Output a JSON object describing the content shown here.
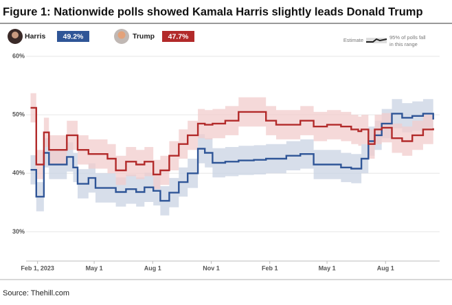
{
  "chart_data": {
    "type": "step-line",
    "title": "Figure 1: Nationwide polls showed Kamala Harris slightly leads Donald Trump",
    "source": "Source: Thehill.com",
    "estimate_label": "Estimate",
    "band_label": [
      "95% of polls fall",
      "in this range"
    ],
    "x": [
      "2023-01-21",
      "2023-01-30",
      "2023-02-11",
      "2023-02-19",
      "2023-03-19",
      "2023-03-29",
      "2023-04-05",
      "2023-04-22",
      "2023-05-03",
      "2023-05-22",
      "2023-06-04",
      "2023-06-20",
      "2023-07-06",
      "2023-07-19",
      "2023-08-02",
      "2023-08-13",
      "2023-08-27",
      "2023-09-11",
      "2023-09-25",
      "2023-10-11",
      "2023-10-22",
      "2023-11-03",
      "2023-11-23",
      "2023-12-14",
      "2024-01-07",
      "2024-01-26",
      "2024-02-11",
      "2024-02-27",
      "2024-03-20",
      "2024-04-10",
      "2024-05-01",
      "2024-05-23",
      "2024-06-08",
      "2024-06-19",
      "2024-06-24",
      "2024-07-05",
      "2024-07-15",
      "2024-07-26",
      "2024-08-11",
      "2024-08-27",
      "2024-09-12",
      "2024-09-29",
      "2024-10-15"
    ],
    "xlim": [
      "2023-01-14",
      "2024-10-25"
    ],
    "xticks": [
      {
        "value": "2023-02-01",
        "label": "Feb 1, 2023"
      },
      {
        "value": "2023-05-01",
        "label": "May 1"
      },
      {
        "value": "2023-08-01",
        "label": "Aug 1"
      },
      {
        "value": "2023-11-01",
        "label": "Nov 1"
      },
      {
        "value": "2024-02-01",
        "label": "Feb 1"
      },
      {
        "value": "2024-05-01",
        "label": "May 1"
      },
      {
        "value": "2024-08-01",
        "label": "Aug 1"
      }
    ],
    "ylim": [
      25,
      60
    ],
    "yticks": [
      {
        "value": 30,
        "label": "30%"
      },
      {
        "value": 40,
        "label": "40%"
      },
      {
        "value": 50,
        "label": "50%"
      },
      {
        "value": 60,
        "label": "60%"
      }
    ],
    "grid": true,
    "series": [
      {
        "name": "Harris",
        "color": "#2f5597",
        "band_color": "#c9d3e3",
        "value_label": "49.2%",
        "values": [
          40.6,
          36.0,
          43.5,
          41.5,
          42.8,
          41.0,
          38.2,
          39.2,
          37.5,
          37.5,
          36.8,
          37.3,
          36.8,
          37.6,
          37.0,
          35.3,
          36.7,
          38.5,
          40.0,
          44.2,
          43.5,
          41.8,
          42.0,
          42.2,
          42.3,
          42.5,
          42.5,
          43.0,
          43.3,
          41.5,
          41.5,
          41.0,
          40.8,
          40.8,
          42.5,
          45.5,
          46.5,
          48.5,
          50.2,
          49.5,
          49.8,
          50.2,
          49.2
        ],
        "lower": [
          38.1,
          33.5,
          41.0,
          39.0,
          40.3,
          38.5,
          35.7,
          36.7,
          35.0,
          35.0,
          34.3,
          34.8,
          34.3,
          35.1,
          34.5,
          32.8,
          34.2,
          36.0,
          37.5,
          41.7,
          41.0,
          39.3,
          39.5,
          39.7,
          39.8,
          40.0,
          40.0,
          40.5,
          40.8,
          39.0,
          39.0,
          38.5,
          38.3,
          38.3,
          40.0,
          43.0,
          44.0,
          46.0,
          47.7,
          47.0,
          47.3,
          47.7,
          46.7
        ],
        "upper": [
          43.1,
          38.5,
          46.0,
          44.0,
          45.3,
          43.5,
          40.7,
          41.7,
          40.0,
          40.0,
          39.3,
          39.8,
          39.3,
          40.1,
          39.5,
          37.8,
          39.2,
          41.0,
          42.5,
          46.7,
          46.0,
          44.3,
          44.5,
          44.7,
          44.8,
          45.0,
          45.0,
          45.5,
          45.8,
          44.0,
          44.0,
          43.5,
          43.3,
          43.3,
          45.0,
          48.0,
          49.0,
          51.0,
          52.7,
          52.0,
          52.3,
          52.7,
          51.7
        ]
      },
      {
        "name": "Trump",
        "color": "#b22a2a",
        "band_color": "#f2cccc",
        "value_label": "47.7%",
        "values": [
          51.2,
          41.5,
          47.0,
          44.0,
          46.5,
          46.5,
          44.0,
          43.3,
          43.3,
          42.5,
          40.5,
          42.0,
          41.5,
          42.0,
          39.8,
          40.5,
          43.0,
          45.0,
          46.5,
          48.5,
          48.3,
          48.5,
          49.0,
          50.5,
          50.5,
          49.0,
          48.3,
          48.3,
          49.0,
          48.0,
          48.3,
          48.0,
          47.5,
          47.2,
          47.5,
          45.0,
          47.5,
          47.8,
          46.0,
          45.5,
          46.5,
          47.5,
          47.7
        ],
        "lower": [
          48.7,
          39.0,
          44.5,
          41.5,
          44.0,
          44.0,
          41.5,
          40.8,
          40.8,
          40.0,
          38.0,
          39.5,
          39.0,
          39.5,
          37.3,
          38.0,
          40.5,
          42.5,
          44.0,
          46.0,
          45.8,
          46.0,
          46.5,
          48.0,
          48.0,
          46.5,
          45.8,
          45.8,
          46.5,
          45.5,
          45.8,
          45.5,
          45.0,
          44.7,
          45.0,
          42.5,
          45.0,
          45.3,
          43.5,
          43.0,
          44.0,
          45.0,
          45.2
        ],
        "upper": [
          53.7,
          44.0,
          49.5,
          46.5,
          49.0,
          49.0,
          46.5,
          45.8,
          45.8,
          45.0,
          43.0,
          44.5,
          44.0,
          44.5,
          42.3,
          43.0,
          45.5,
          47.5,
          49.0,
          51.0,
          50.8,
          51.0,
          51.5,
          53.0,
          53.0,
          51.5,
          50.8,
          50.8,
          51.5,
          50.5,
          50.8,
          50.5,
          50.0,
          49.7,
          50.0,
          47.5,
          50.0,
          50.3,
          48.5,
          48.0,
          49.0,
          50.0,
          50.2
        ]
      }
    ]
  }
}
